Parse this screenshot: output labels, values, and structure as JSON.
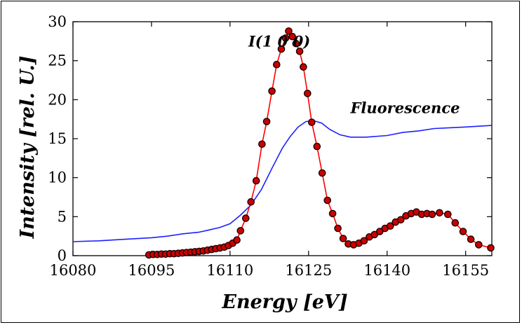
{
  "chart_data": {
    "type": "line",
    "xlabel": "Energy [eV]",
    "ylabel": "Intensity [rel. U.]",
    "xlim": [
      16080,
      16160
    ],
    "ylim": [
      0,
      30
    ],
    "x_ticks": [
      16080,
      16095,
      16110,
      16125,
      16140,
      16155
    ],
    "y_ticks": [
      0,
      5,
      10,
      15,
      20,
      25,
      30
    ],
    "grid": false,
    "annotations": [
      {
        "text": "I(1 0 0)",
        "x": 16113.5,
        "y": 26.8
      },
      {
        "text": "Fluorescence",
        "x": 16133,
        "y": 18.3
      }
    ],
    "series": [
      {
        "label_ref": "Fluorescence",
        "style": "line",
        "color": "#1f1fff",
        "points": [
          [
            16080,
            1.8
          ],
          [
            16085,
            1.9
          ],
          [
            16090,
            2.1
          ],
          [
            16095,
            2.3
          ],
          [
            16098,
            2.5
          ],
          [
            16101,
            2.8
          ],
          [
            16104,
            3.0
          ],
          [
            16106,
            3.3
          ],
          [
            16108,
            3.6
          ],
          [
            16110,
            4.1
          ],
          [
            16112,
            5.2
          ],
          [
            16114,
            6.5
          ],
          [
            16116,
            8.5
          ],
          [
            16118,
            11.2
          ],
          [
            16120,
            13.8
          ],
          [
            16121.5,
            15.3
          ],
          [
            16123,
            16.5
          ],
          [
            16124.5,
            17.2
          ],
          [
            16126,
            17.3
          ],
          [
            16127.5,
            17.0
          ],
          [
            16129,
            16.2
          ],
          [
            16131,
            15.5
          ],
          [
            16133,
            15.2
          ],
          [
            16136,
            15.2
          ],
          [
            16140,
            15.4
          ],
          [
            16143,
            15.8
          ],
          [
            16146,
            16.0
          ],
          [
            16149,
            16.3
          ],
          [
            16152,
            16.4
          ],
          [
            16155,
            16.5
          ],
          [
            16160,
            16.7
          ]
        ]
      },
      {
        "label_ref": "I(1 0 0)",
        "style": "line+markers",
        "color": "#ff0000",
        "marker_color": "#cc0000",
        "points": [
          [
            16094.5,
            0.1
          ],
          [
            16095.3,
            0.15
          ],
          [
            16096.1,
            0.15
          ],
          [
            16096.9,
            0.2
          ],
          [
            16097.7,
            0.2
          ],
          [
            16098.5,
            0.25
          ],
          [
            16099.3,
            0.25
          ],
          [
            16100.1,
            0.3
          ],
          [
            16100.9,
            0.35
          ],
          [
            16101.7,
            0.4
          ],
          [
            16102.5,
            0.45
          ],
          [
            16103.3,
            0.5
          ],
          [
            16104.1,
            0.55
          ],
          [
            16104.9,
            0.6
          ],
          [
            16105.7,
            0.7
          ],
          [
            16106.5,
            0.8
          ],
          [
            16107.3,
            0.9
          ],
          [
            16108.1,
            1.0
          ],
          [
            16108.9,
            1.1
          ],
          [
            16109.7,
            1.3
          ],
          [
            16110.5,
            1.6
          ],
          [
            16111.3,
            2.0
          ],
          [
            16112.0,
            3.2
          ],
          [
            16113.0,
            4.8
          ],
          [
            16114.0,
            6.9
          ],
          [
            16115.0,
            9.6
          ],
          [
            16116.1,
            14.3
          ],
          [
            16117.0,
            17.2
          ],
          [
            16118.0,
            21.1
          ],
          [
            16118.9,
            24.5
          ],
          [
            16119.8,
            26.5
          ],
          [
            16120.6,
            27.9
          ],
          [
            16121.2,
            28.8
          ],
          [
            16121.9,
            28.1
          ],
          [
            16122.6,
            27.2
          ],
          [
            16123.3,
            26.2
          ],
          [
            16124.0,
            24.2
          ],
          [
            16124.8,
            20.8
          ],
          [
            16125.6,
            17.1
          ],
          [
            16126.6,
            14.0
          ],
          [
            16127.6,
            10.6
          ],
          [
            16128.6,
            7.1
          ],
          [
            16129.6,
            5.4
          ],
          [
            16130.6,
            3.5
          ],
          [
            16131.6,
            2.2
          ],
          [
            16132.6,
            1.5
          ],
          [
            16133.6,
            1.4
          ],
          [
            16134.6,
            1.6
          ],
          [
            16135.6,
            1.9
          ],
          [
            16136.6,
            2.4
          ],
          [
            16137.6,
            2.7
          ],
          [
            16138.6,
            3.1
          ],
          [
            16139.6,
            3.5
          ],
          [
            16140.6,
            3.8
          ],
          [
            16141.6,
            4.3
          ],
          [
            16142.6,
            4.6
          ],
          [
            16143.6,
            5.1
          ],
          [
            16144.6,
            5.4
          ],
          [
            16145.6,
            5.6
          ],
          [
            16146.6,
            5.3
          ],
          [
            16147.6,
            5.4
          ],
          [
            16148.6,
            5.3
          ],
          [
            16150.0,
            5.5
          ],
          [
            16151.6,
            5.3
          ],
          [
            16153.0,
            4.2
          ],
          [
            16154.5,
            3.1
          ],
          [
            16156.0,
            2.1
          ],
          [
            16157.5,
            1.4
          ],
          [
            16159.8,
            1.0
          ]
        ]
      }
    ]
  }
}
